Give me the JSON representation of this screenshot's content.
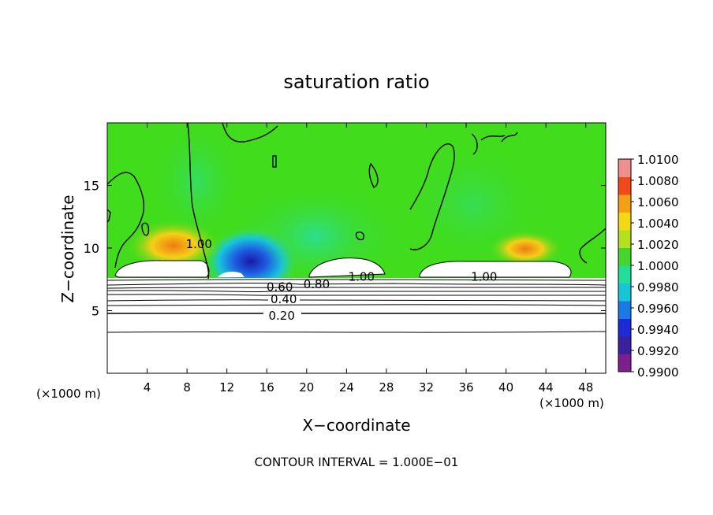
{
  "chart_data": {
    "type": "heatmap",
    "title": "saturation ratio",
    "xlabel": "X−coordinate",
    "ylabel": "Z−coordinate",
    "x_unit_left": "(×1000 m)",
    "x_unit_right": "(×1000 m)",
    "xlim": [
      0,
      50
    ],
    "ylim": [
      0,
      20
    ],
    "x_ticks": [
      4,
      8,
      12,
      16,
      20,
      24,
      28,
      32,
      36,
      40,
      44,
      48
    ],
    "y_ticks": [
      5,
      10,
      15
    ],
    "contour_labels": [
      {
        "text": "1.00",
        "x": 9.2,
        "y": 10.3
      },
      {
        "text": "1.00",
        "x": 25.5,
        "y": 7.7
      },
      {
        "text": "1.00",
        "x": 37.8,
        "y": 7.7
      },
      {
        "text": "0.80",
        "x": 21.0,
        "y": 7.1
      },
      {
        "text": "0.60",
        "x": 17.3,
        "y": 6.9
      },
      {
        "text": "0.40",
        "x": 17.7,
        "y": 5.9
      },
      {
        "text": "0.20",
        "x": 17.5,
        "y": 4.6
      }
    ],
    "footer": "CONTOUR INTERVAL = 1.000E−01",
    "colorbar": {
      "ticks": [
        "1.0100",
        "1.0080",
        "1.0060",
        "1.0040",
        "1.0020",
        "1.0000",
        "0.9980",
        "0.9960",
        "0.9940",
        "0.9920",
        "0.9900"
      ],
      "colors": [
        "#7f1f8f",
        "#3a1f9e",
        "#1c2ad8",
        "#1b78e6",
        "#16c6d6",
        "#22dd9a",
        "#44d62a",
        "#b4e01d",
        "#f4da15",
        "#f3a015",
        "#f04a18",
        "#ef8f8f"
      ]
    },
    "grid": false,
    "legend_placement": "right"
  }
}
